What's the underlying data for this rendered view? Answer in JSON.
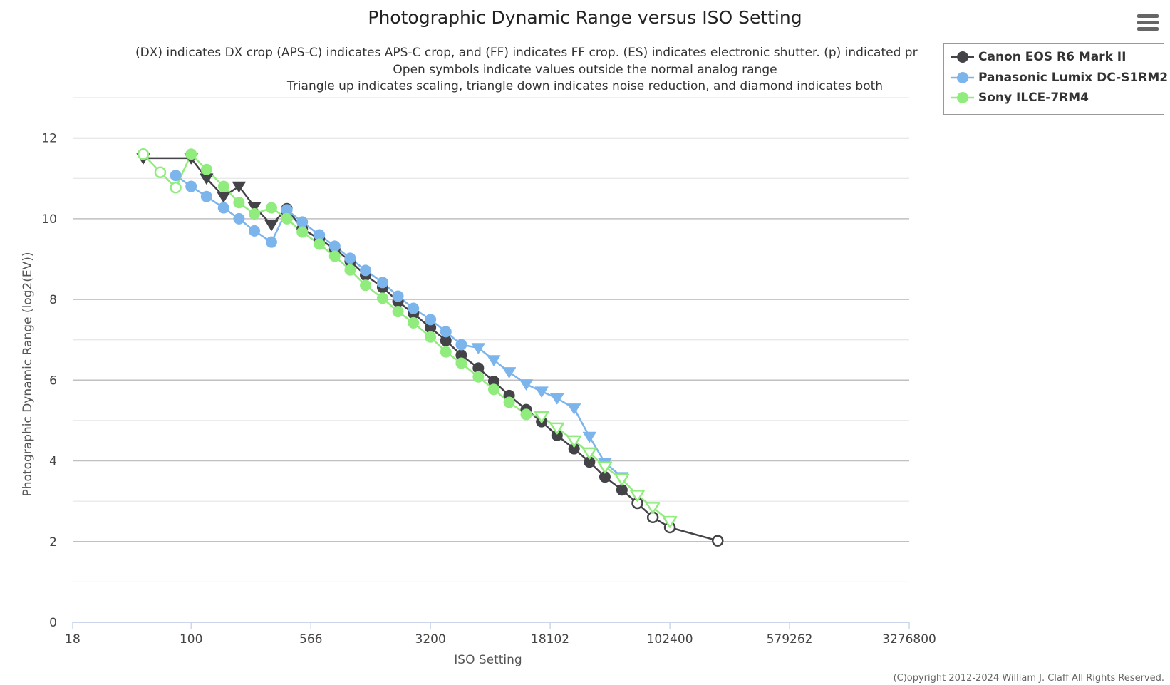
{
  "chart_title": "Photographic Dynamic Range versus ISO Setting",
  "subtitle_lines": [
    "(DX) indicates DX crop (APS-C) indicates APS-C crop, and (FF) indicates FF crop. (ES) indicates electronic shutter. (p) indicated pr",
    "Open symbols indicate values outside the normal analog range",
    "Triangle up indicates scaling, triangle down indicates noise reduction, and diamond indicates both"
  ],
  "copyright": "(C)opyright 2012-2024 William J. Claff All Rights Reserved.",
  "menu_icon": "hamburger-menu-icon",
  "colors": {
    "canon": "#434348",
    "panasonic": "#7cb5ec",
    "sony": "#90ed7d",
    "grid": "#c8c8c8",
    "axis": "#ccd6eb"
  },
  "chart_data": {
    "type": "line",
    "title": "Photographic Dynamic Range versus ISO Setting",
    "xlabel": "ISO Setting",
    "ylabel": "Photographic Dynamic Range (log2(EV))",
    "x_scale": "log",
    "x_ticks": [
      "18",
      "100",
      "566",
      "3200",
      "18102",
      "102400",
      "579262",
      "3276800"
    ],
    "x_tick_values": [
      18,
      100,
      566,
      3200,
      18102,
      102400,
      579262,
      3276800
    ],
    "y_ticks": [
      0,
      2,
      4,
      6,
      8,
      10,
      12
    ],
    "ylim": [
      0,
      13
    ],
    "grid": true,
    "legend_position": "top-right",
    "series": [
      {
        "name": "Canon EOS R6 Mark II",
        "color": "#434348",
        "points": [
          {
            "iso": 50,
            "dr": 11.5,
            "marker": "triangle-down"
          },
          {
            "iso": 100,
            "dr": 11.5,
            "marker": "triangle-down"
          },
          {
            "iso": 125,
            "dr": 11.0,
            "marker": "triangle-down"
          },
          {
            "iso": 160,
            "dr": 10.55,
            "marker": "triangle-down"
          },
          {
            "iso": 200,
            "dr": 10.8,
            "marker": "triangle-down"
          },
          {
            "iso": 250,
            "dr": 10.3,
            "marker": "triangle-down"
          },
          {
            "iso": 320,
            "dr": 9.85,
            "marker": "triangle-down"
          },
          {
            "iso": 400,
            "dr": 10.25,
            "marker": "circle"
          },
          {
            "iso": 500,
            "dr": 9.75,
            "marker": "circle"
          },
          {
            "iso": 640,
            "dr": 9.5,
            "marker": "circle"
          },
          {
            "iso": 800,
            "dr": 9.25,
            "marker": "circle"
          },
          {
            "iso": 1000,
            "dr": 8.95,
            "marker": "circle"
          },
          {
            "iso": 1250,
            "dr": 8.6,
            "marker": "circle"
          },
          {
            "iso": 1600,
            "dr": 8.3,
            "marker": "circle"
          },
          {
            "iso": 2000,
            "dr": 7.95,
            "marker": "circle"
          },
          {
            "iso": 2500,
            "dr": 7.65,
            "marker": "circle"
          },
          {
            "iso": 3200,
            "dr": 7.3,
            "marker": "circle"
          },
          {
            "iso": 4000,
            "dr": 6.98,
            "marker": "circle"
          },
          {
            "iso": 5000,
            "dr": 6.62,
            "marker": "circle"
          },
          {
            "iso": 6400,
            "dr": 6.3,
            "marker": "circle"
          },
          {
            "iso": 8000,
            "dr": 5.97,
            "marker": "circle"
          },
          {
            "iso": 10000,
            "dr": 5.62,
            "marker": "circle"
          },
          {
            "iso": 12800,
            "dr": 5.27,
            "marker": "circle"
          },
          {
            "iso": 16000,
            "dr": 4.97,
            "marker": "circle"
          },
          {
            "iso": 20000,
            "dr": 4.63,
            "marker": "circle"
          },
          {
            "iso": 25600,
            "dr": 4.3,
            "marker": "circle"
          },
          {
            "iso": 32000,
            "dr": 3.97,
            "marker": "circle"
          },
          {
            "iso": 40000,
            "dr": 3.6,
            "marker": "circle"
          },
          {
            "iso": 51200,
            "dr": 3.28,
            "marker": "circle"
          },
          {
            "iso": 64000,
            "dr": 2.95,
            "marker": "circle-open"
          },
          {
            "iso": 80000,
            "dr": 2.6,
            "marker": "circle-open"
          },
          {
            "iso": 102400,
            "dr": 2.35,
            "marker": "circle-open"
          },
          {
            "iso": 204800,
            "dr": 2.02,
            "marker": "circle-open"
          }
        ]
      },
      {
        "name": "Panasonic Lumix DC-S1RM2",
        "color": "#7cb5ec",
        "points": [
          {
            "iso": 80,
            "dr": 11.07,
            "marker": "circle"
          },
          {
            "iso": 100,
            "dr": 10.8,
            "marker": "circle"
          },
          {
            "iso": 125,
            "dr": 10.55,
            "marker": "circle"
          },
          {
            "iso": 160,
            "dr": 10.27,
            "marker": "circle"
          },
          {
            "iso": 200,
            "dr": 10.0,
            "marker": "circle"
          },
          {
            "iso": 250,
            "dr": 9.7,
            "marker": "circle"
          },
          {
            "iso": 320,
            "dr": 9.42,
            "marker": "circle"
          },
          {
            "iso": 400,
            "dr": 10.22,
            "marker": "circle"
          },
          {
            "iso": 500,
            "dr": 9.92,
            "marker": "circle"
          },
          {
            "iso": 640,
            "dr": 9.6,
            "marker": "circle"
          },
          {
            "iso": 800,
            "dr": 9.32,
            "marker": "circle"
          },
          {
            "iso": 1000,
            "dr": 9.02,
            "marker": "circle"
          },
          {
            "iso": 1250,
            "dr": 8.72,
            "marker": "circle"
          },
          {
            "iso": 1600,
            "dr": 8.42,
            "marker": "circle"
          },
          {
            "iso": 2000,
            "dr": 8.08,
            "marker": "circle"
          },
          {
            "iso": 2500,
            "dr": 7.78,
            "marker": "circle"
          },
          {
            "iso": 3200,
            "dr": 7.5,
            "marker": "circle"
          },
          {
            "iso": 4000,
            "dr": 7.2,
            "marker": "circle"
          },
          {
            "iso": 5000,
            "dr": 6.88,
            "marker": "circle"
          },
          {
            "iso": 6400,
            "dr": 6.8,
            "marker": "triangle-down"
          },
          {
            "iso": 8000,
            "dr": 6.5,
            "marker": "triangle-down"
          },
          {
            "iso": 10000,
            "dr": 6.2,
            "marker": "triangle-down"
          },
          {
            "iso": 12800,
            "dr": 5.9,
            "marker": "triangle-down"
          },
          {
            "iso": 16000,
            "dr": 5.72,
            "marker": "triangle-down"
          },
          {
            "iso": 20000,
            "dr": 5.55,
            "marker": "triangle-down"
          },
          {
            "iso": 25600,
            "dr": 5.3,
            "marker": "triangle-down"
          },
          {
            "iso": 32000,
            "dr": 4.6,
            "marker": "triangle-down"
          },
          {
            "iso": 40000,
            "dr": 3.95,
            "marker": "triangle-down"
          },
          {
            "iso": 51200,
            "dr": 3.6,
            "marker": "triangle-down"
          }
        ]
      },
      {
        "name": "Sony ILCE-7RM4",
        "color": "#90ed7d",
        "points": [
          {
            "iso": 50,
            "dr": 11.6,
            "marker": "circle-open"
          },
          {
            "iso": 64,
            "dr": 11.15,
            "marker": "circle-open"
          },
          {
            "iso": 80,
            "dr": 10.77,
            "marker": "circle-open"
          },
          {
            "iso": 100,
            "dr": 11.6,
            "marker": "circle"
          },
          {
            "iso": 125,
            "dr": 11.22,
            "marker": "circle"
          },
          {
            "iso": 160,
            "dr": 10.8,
            "marker": "circle"
          },
          {
            "iso": 200,
            "dr": 10.4,
            "marker": "circle"
          },
          {
            "iso": 250,
            "dr": 10.12,
            "marker": "circle"
          },
          {
            "iso": 320,
            "dr": 10.27,
            "marker": "circle"
          },
          {
            "iso": 400,
            "dr": 10.0,
            "marker": "circle"
          },
          {
            "iso": 500,
            "dr": 9.67,
            "marker": "circle"
          },
          {
            "iso": 640,
            "dr": 9.37,
            "marker": "circle"
          },
          {
            "iso": 800,
            "dr": 9.07,
            "marker": "circle"
          },
          {
            "iso": 1000,
            "dr": 8.73,
            "marker": "circle"
          },
          {
            "iso": 1250,
            "dr": 8.35,
            "marker": "circle"
          },
          {
            "iso": 1600,
            "dr": 8.03,
            "marker": "circle"
          },
          {
            "iso": 2000,
            "dr": 7.7,
            "marker": "circle"
          },
          {
            "iso": 2500,
            "dr": 7.42,
            "marker": "circle"
          },
          {
            "iso": 3200,
            "dr": 7.07,
            "marker": "circle"
          },
          {
            "iso": 4000,
            "dr": 6.7,
            "marker": "circle"
          },
          {
            "iso": 5000,
            "dr": 6.42,
            "marker": "circle"
          },
          {
            "iso": 6400,
            "dr": 6.08,
            "marker": "circle"
          },
          {
            "iso": 8000,
            "dr": 5.77,
            "marker": "circle"
          },
          {
            "iso": 10000,
            "dr": 5.45,
            "marker": "circle"
          },
          {
            "iso": 12800,
            "dr": 5.15,
            "marker": "circle"
          },
          {
            "iso": 16000,
            "dr": 5.1,
            "marker": "triangle-down-open"
          },
          {
            "iso": 20000,
            "dr": 4.82,
            "marker": "triangle-down-open"
          },
          {
            "iso": 25600,
            "dr": 4.5,
            "marker": "triangle-down-open"
          },
          {
            "iso": 32000,
            "dr": 4.2,
            "marker": "triangle-down-open"
          },
          {
            "iso": 40000,
            "dr": 3.85,
            "marker": "triangle-down-open"
          },
          {
            "iso": 51200,
            "dr": 3.55,
            "marker": "triangle-down-open"
          },
          {
            "iso": 64000,
            "dr": 3.15,
            "marker": "triangle-down-open"
          },
          {
            "iso": 80000,
            "dr": 2.85,
            "marker": "triangle-down-open"
          },
          {
            "iso": 102400,
            "dr": 2.5,
            "marker": "triangle-down-open"
          }
        ]
      }
    ]
  }
}
